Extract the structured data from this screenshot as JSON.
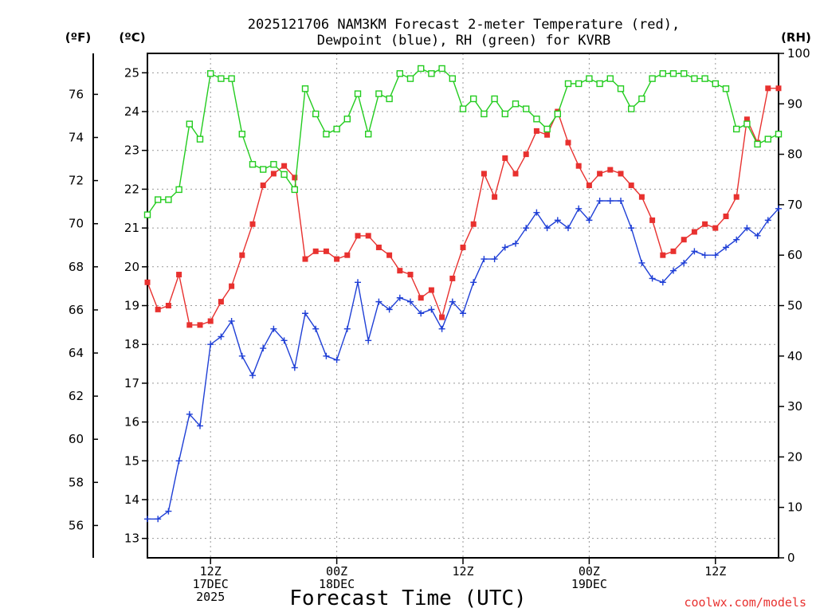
{
  "chart_data": {
    "type": "line",
    "title_line1": "2025121706 NAM3KM Forecast 2-meter Temperature (red),",
    "title_line2": "Dewpoint (blue), RH (green) for KVRB",
    "xlabel": "Forecast Time (UTC)",
    "credit": "coolwx.com/models",
    "units": {
      "fahrenheit": "(ºF)",
      "celsius": "(ºC)",
      "rh": "(RH)"
    },
    "x_hours_range": [
      0,
      60
    ],
    "x_ticks": [
      {
        "hour": 6,
        "lines": [
          "12Z",
          "17DEC",
          "2025"
        ]
      },
      {
        "hour": 18,
        "lines": [
          "00Z",
          "18DEC"
        ]
      },
      {
        "hour": 30,
        "lines": [
          "12Z"
        ]
      },
      {
        "hour": 42,
        "lines": [
          "00Z",
          "19DEC"
        ]
      },
      {
        "hour": 54,
        "lines": [
          "12Z"
        ]
      }
    ],
    "celsius_axis": {
      "range": [
        12.5,
        25.5
      ],
      "ticks": [
        13,
        14,
        15,
        16,
        17,
        18,
        19,
        20,
        21,
        22,
        23,
        24,
        25
      ]
    },
    "fahrenheit_axis": {
      "ticks": [
        56,
        58,
        60,
        62,
        64,
        66,
        68,
        70,
        72,
        74,
        76
      ]
    },
    "rh_axis": {
      "range": [
        0,
        100
      ],
      "ticks": [
        0,
        10,
        20,
        30,
        40,
        50,
        60,
        70,
        80,
        90,
        100
      ]
    },
    "grid": true,
    "series": [
      {
        "name": "Temperature",
        "color": "#e8312f",
        "marker": "filled-square",
        "axis": "celsius",
        "values": [
          19.6,
          18.9,
          19.0,
          19.8,
          18.5,
          18.5,
          18.6,
          19.1,
          19.5,
          20.3,
          21.1,
          22.1,
          22.4,
          22.6,
          22.3,
          20.2,
          20.4,
          20.4,
          20.2,
          20.3,
          20.8,
          20.8,
          20.5,
          20.3,
          19.9,
          19.8,
          19.2,
          19.4,
          18.7,
          19.7,
          20.5,
          21.1,
          22.4,
          21.8,
          22.8,
          22.4,
          22.9,
          23.5,
          23.4,
          24.0,
          23.2,
          22.6,
          22.1,
          22.4,
          22.5,
          22.4,
          22.1,
          21.8,
          21.2,
          20.3,
          20.4,
          20.7,
          20.9,
          21.1,
          21.0,
          21.3,
          21.8,
          23.8,
          23.2,
          24.6,
          24.6
        ]
      },
      {
        "name": "Dewpoint",
        "color": "#1f3fd6",
        "marker": "plus",
        "axis": "celsius",
        "values": [
          13.5,
          13.5,
          13.7,
          15.0,
          16.2,
          15.9,
          18.0,
          18.2,
          18.6,
          17.7,
          17.2,
          17.9,
          18.4,
          18.1,
          17.4,
          18.8,
          18.4,
          17.7,
          17.6,
          18.4,
          19.6,
          18.1,
          19.1,
          18.9,
          19.2,
          19.1,
          18.8,
          18.9,
          18.4,
          19.1,
          18.8,
          19.6,
          20.2,
          20.2,
          20.5,
          20.6,
          21.0,
          21.4,
          21.0,
          21.2,
          21.0,
          21.5,
          21.2,
          21.7,
          21.7,
          21.7,
          21.0,
          20.1,
          19.7,
          19.6,
          19.9,
          20.1,
          20.4,
          20.3,
          20.3,
          20.5,
          20.7,
          21.0,
          20.8,
          21.2,
          21.5
        ]
      },
      {
        "name": "RH",
        "color": "#23cc1f",
        "marker": "open-square",
        "axis": "rh",
        "values": [
          68,
          71,
          71,
          73,
          86,
          83,
          96,
          95,
          95,
          84,
          78,
          77,
          78,
          76,
          73,
          93,
          88,
          84,
          85,
          87,
          92,
          84,
          92,
          91,
          96,
          95,
          97,
          96,
          97,
          95,
          89,
          91,
          88,
          91,
          88,
          90,
          89,
          87,
          85,
          88,
          94,
          94,
          95,
          94,
          95,
          93,
          89,
          91,
          95,
          96,
          96,
          96,
          95,
          95,
          94,
          93,
          85,
          86,
          82,
          83,
          84
        ]
      }
    ]
  }
}
